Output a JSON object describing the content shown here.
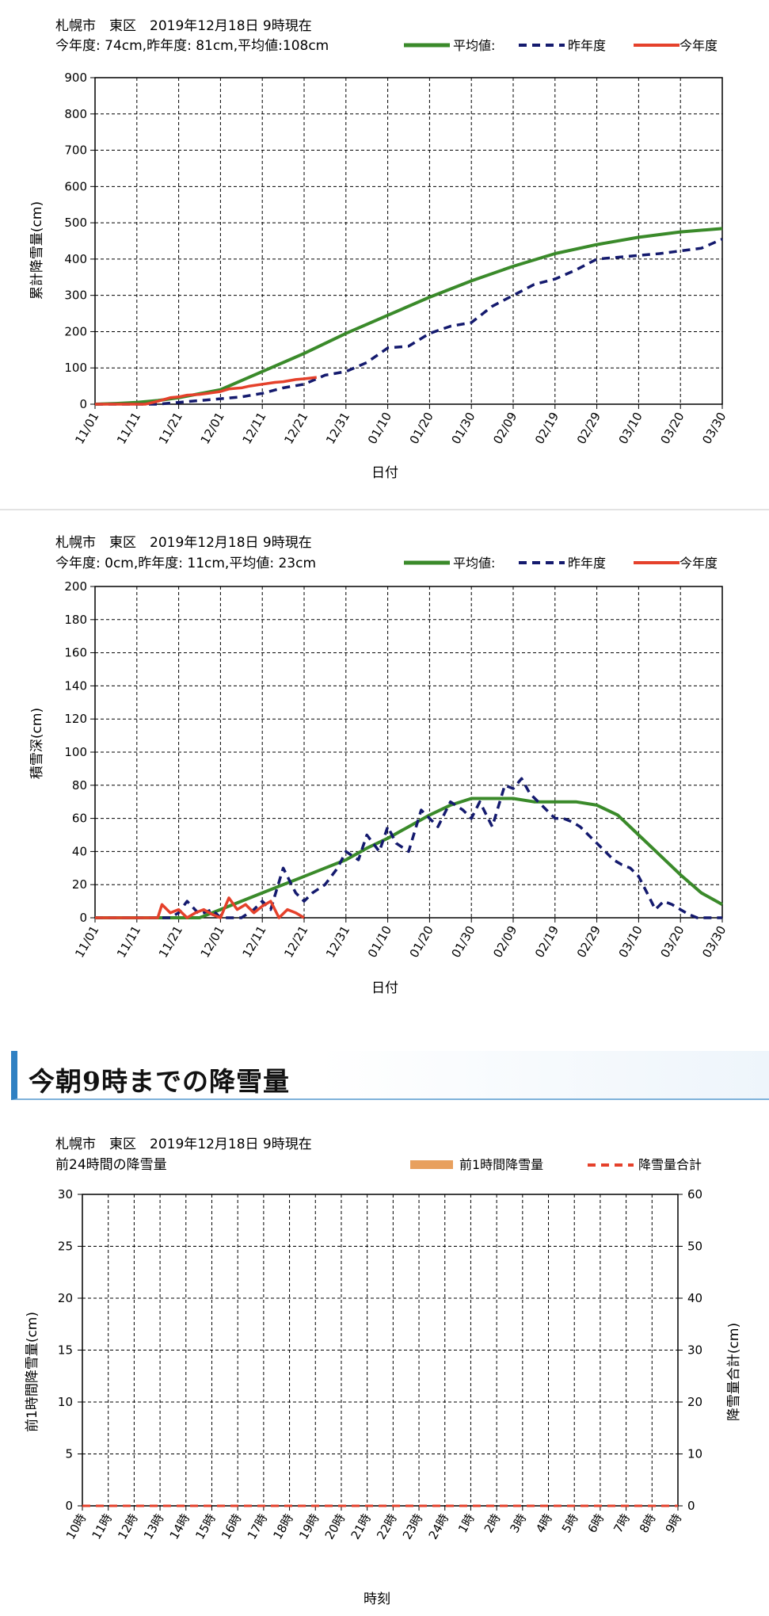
{
  "section_heading": "今朝9時までの降雪量",
  "colors": {
    "avg": "#3a8a2a",
    "prev": "#141a6e",
    "curr": "#e5412b",
    "hourly": "#e8a05e",
    "total": "#e5412b",
    "grid": "#000000"
  },
  "chart_data": [
    {
      "type": "line",
      "title": "札幌市　東区　2019年12月18日 9時現在",
      "subtitle": "今年度: 74cm,昨年度: 81cm,平均値:108cm",
      "xlabel": "日付",
      "ylabel": "累計降雪量(cm)",
      "ylim": [
        0,
        900
      ],
      "yticks": [
        "0",
        "100",
        "200",
        "300",
        "400",
        "500",
        "600",
        "700",
        "800",
        "900"
      ],
      "xticks": [
        "11/01",
        "11/11",
        "11/21",
        "12/01",
        "12/11",
        "12/21",
        "12/31",
        "01/10",
        "01/20",
        "01/30",
        "02/09",
        "02/19",
        "02/29",
        "03/10",
        "03/20",
        "03/30"
      ],
      "legend": [
        "平均値:",
        "昨年度",
        "今年度"
      ],
      "series": [
        {
          "name": "平均値:",
          "x": [
            0,
            5,
            10,
            15,
            20,
            30,
            40,
            50,
            60,
            70,
            80,
            90,
            100,
            110,
            120,
            130,
            140,
            150
          ],
          "values": [
            0,
            2,
            5,
            10,
            18,
            40,
            90,
            140,
            195,
            245,
            295,
            340,
            380,
            415,
            440,
            460,
            475,
            484
          ]
        },
        {
          "name": "昨年度",
          "x": [
            0,
            10,
            15,
            20,
            25,
            30,
            35,
            40,
            45,
            50,
            55,
            60,
            65,
            70,
            75,
            80,
            85,
            90,
            95,
            100,
            105,
            110,
            115,
            120,
            125,
            130,
            135,
            145,
            150
          ],
          "values": [
            0,
            0,
            0,
            5,
            10,
            15,
            20,
            30,
            45,
            55,
            80,
            90,
            115,
            155,
            160,
            195,
            215,
            225,
            270,
            300,
            330,
            345,
            370,
            400,
            405,
            410,
            415,
            430,
            455
          ]
        },
        {
          "name": "今年度",
          "x": [
            0,
            12,
            15,
            18,
            20,
            22,
            25,
            27,
            30,
            32,
            35,
            37,
            40,
            43,
            45,
            48,
            50,
            53
          ],
          "values": [
            0,
            0,
            8,
            18,
            20,
            25,
            27,
            30,
            35,
            42,
            45,
            50,
            55,
            60,
            62,
            68,
            70,
            74
          ]
        }
      ]
    },
    {
      "type": "line",
      "title": "札幌市　東区　2019年12月18日 9時現在",
      "subtitle": "今年度: 0cm,昨年度: 11cm,平均値: 23cm",
      "xlabel": "日付",
      "ylabel": "積雪深(cm)",
      "ylim": [
        0,
        200
      ],
      "yticks": [
        "0",
        "20",
        "40",
        "60",
        "80",
        "100",
        "120",
        "140",
        "160",
        "180",
        "200"
      ],
      "xticks": [
        "11/01",
        "11/11",
        "11/21",
        "12/01",
        "12/11",
        "12/21",
        "12/31",
        "01/10",
        "01/20",
        "01/30",
        "02/09",
        "02/19",
        "02/29",
        "03/10",
        "03/20",
        "03/30"
      ],
      "legend": [
        "平均値:",
        "昨年度",
        "今年度"
      ],
      "series": [
        {
          "name": "平均値:",
          "x": [
            0,
            10,
            15,
            20,
            25,
            30,
            35,
            40,
            45,
            50,
            55,
            60,
            65,
            70,
            75,
            80,
            85,
            90,
            95,
            100,
            105,
            110,
            115,
            120,
            125,
            130,
            135,
            140,
            145,
            150
          ],
          "values": [
            0,
            0,
            0,
            0,
            0,
            5,
            10,
            15,
            20,
            25,
            30,
            35,
            42,
            48,
            55,
            62,
            68,
            72,
            72,
            72,
            70,
            70,
            70,
            68,
            62,
            50,
            38,
            26,
            15,
            8
          ]
        },
        {
          "name": "昨年度",
          "x": [
            0,
            10,
            18,
            20,
            22,
            25,
            28,
            30,
            33,
            35,
            38,
            40,
            42,
            45,
            48,
            50,
            52,
            55,
            58,
            60,
            63,
            65,
            68,
            70,
            72,
            75,
            78,
            80,
            82,
            85,
            88,
            90,
            92,
            95,
            98,
            100,
            102,
            104,
            106,
            108,
            110,
            112,
            114,
            116,
            118,
            120,
            122,
            124,
            126,
            128,
            130,
            132,
            134,
            136,
            138,
            140,
            142,
            144,
            146,
            148,
            150
          ],
          "values": [
            0,
            0,
            0,
            3,
            10,
            2,
            5,
            0,
            0,
            0,
            5,
            10,
            5,
            30,
            15,
            10,
            15,
            20,
            30,
            40,
            35,
            50,
            40,
            55,
            45,
            40,
            65,
            60,
            55,
            70,
            65,
            60,
            70,
            55,
            80,
            78,
            84,
            75,
            70,
            65,
            60,
            60,
            58,
            55,
            50,
            45,
            40,
            35,
            32,
            30,
            25,
            15,
            5,
            10,
            8,
            5,
            2,
            0,
            0,
            0,
            0
          ]
        },
        {
          "name": "今年度",
          "x": [
            0,
            10,
            15,
            16,
            18,
            20,
            22,
            24,
            26,
            28,
            30,
            32,
            34,
            36,
            38,
            40,
            42,
            44,
            46,
            48,
            50
          ],
          "values": [
            0,
            0,
            0,
            8,
            3,
            5,
            0,
            3,
            5,
            2,
            0,
            12,
            5,
            8,
            3,
            7,
            10,
            0,
            5,
            3,
            0
          ]
        }
      ]
    },
    {
      "type": "bar",
      "title": "札幌市　東区　2019年12月18日 9時現在",
      "subtitle": "前24時間の降雪量",
      "xlabel": "時刻",
      "ylabel": "前1時間降雪量(cm)",
      "y2label": "降雪量合計(cm)",
      "ylim": [
        0,
        30
      ],
      "y2lim": [
        0,
        60
      ],
      "yticks": [
        "0",
        "5",
        "10",
        "15",
        "20",
        "25",
        "30"
      ],
      "y2ticks": [
        "0",
        "10",
        "20",
        "30",
        "40",
        "50",
        "60"
      ],
      "categories": [
        "10時",
        "11時",
        "12時",
        "13時",
        "14時",
        "15時",
        "16時",
        "17時",
        "18時",
        "19時",
        "20時",
        "21時",
        "22時",
        "23時",
        "24時",
        "1時",
        "2時",
        "3時",
        "4時",
        "5時",
        "6時",
        "7時",
        "8時",
        "9時"
      ],
      "legend": [
        "前1時間降雪量",
        "降雪量合計"
      ],
      "series": [
        {
          "name": "前1時間降雪量",
          "values": [
            0,
            0,
            0,
            0,
            0,
            0,
            0,
            0,
            0,
            0,
            0,
            0,
            0,
            0,
            0,
            0,
            0,
            0,
            0,
            0,
            0,
            0,
            0,
            0
          ]
        },
        {
          "name": "降雪量合計",
          "values": [
            0,
            0,
            0,
            0,
            0,
            0,
            0,
            0,
            0,
            0,
            0,
            0,
            0,
            0,
            0,
            0,
            0,
            0,
            0,
            0,
            0,
            0,
            0,
            0
          ]
        }
      ]
    }
  ]
}
